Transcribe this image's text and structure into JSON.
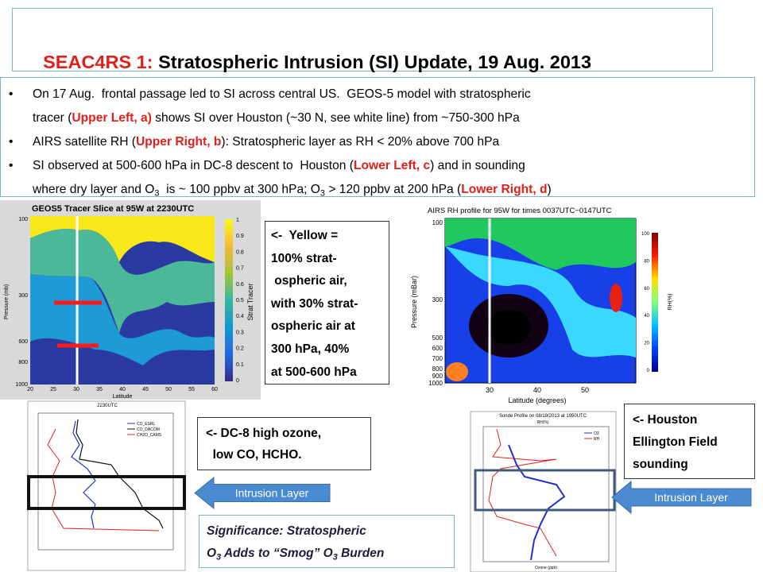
{
  "title": {
    "lead": "SEAC4RS 1:",
    "rest": " Stratospheric Intrusion (SI) Update, 19 Aug. 2013"
  },
  "bullets": [
    [
      [
        {
          "text": "On 17 Aug.  frontal passage led to SI across central US.  GEOS-5 model with stratospheric"
        }
      ],
      [
        {
          "text": "tracer ("
        },
        {
          "text": "Upper Left, a)",
          "style": "red"
        },
        {
          "text": " shows SI over Houston (~30 N, see white line) from ~750-300 hPa"
        }
      ]
    ],
    [
      [
        {
          "text": "AIRS satellite RH ("
        },
        {
          "text": "Upper Right, b",
          "style": "red"
        },
        {
          "text": "): Stratospheric layer as RH < 20% above 700 hPa"
        }
      ]
    ],
    [
      [
        {
          "text": "SI observed at 500-600 hPa in DC-8 descent to  Houston ("
        },
        {
          "text": "Lower Left, c",
          "style": "red"
        },
        {
          "text": ") and in sounding"
        }
      ],
      [
        {
          "text": "where dry layer and O"
        },
        {
          "text": "3",
          "style": "sub"
        },
        {
          "text": "  is ~ 100 ppbv at 300 hPa; O"
        },
        {
          "text": "3",
          "style": "sub"
        },
        {
          "text": " > 120 ppbv at 200 hPa ("
        },
        {
          "text": "Lower Right, d",
          "style": "red"
        },
        {
          "text": ")"
        }
      ]
    ]
  ],
  "yellow_note": [
    "<-  Yellow =",
    "100% strat-",
    " ospheric air,",
    "with 30% strat-",
    "ospheric air at",
    "300 hPa, 40%",
    "at 500-600 hPa"
  ],
  "dc8_note": [
    "<- DC-8 high ozone,",
    "  low CO, HCHO."
  ],
  "houston_note": [
    "<- Houston",
    "Ellington Field",
    "sounding"
  ],
  "significance": [
    [
      {
        "text": "Significance: Stratospheric"
      }
    ],
    [
      {
        "text": "O"
      },
      {
        "text": "3",
        "style": "sub"
      },
      {
        "text": " Adds to “Smog” O"
      },
      {
        "text": "3",
        "style": "sub"
      },
      {
        "text": " Burden"
      }
    ]
  ],
  "arrows": {
    "left": "Intrusion Layer",
    "right": "Intrusion Layer"
  },
  "plots": {
    "upper_left": {
      "title": "GEOS5 Tracer Slice at 95W at 2230UTC",
      "y_label": "Pressure (mb)",
      "x_label": "Latitude",
      "colorbar_label": "Strat Tracer",
      "x_ticks": [
        "20",
        "25",
        "30",
        "35",
        "40",
        "45",
        "50",
        "55",
        "60"
      ],
      "y_ticks": [
        "100",
        "300",
        "600",
        "800",
        "1000"
      ],
      "colorbar_ticks": [
        "1",
        "0.9",
        "0.8",
        "0.7",
        "0.6",
        "0.5",
        "0.4",
        "0.3",
        "0.2",
        "0.1",
        "0"
      ]
    },
    "upper_right": {
      "title": "AIRS RH profile for 95W for times 0037UTC−0147UTC",
      "y_label": "Pressure (mBar)",
      "x_label": "Latitude (degrees)",
      "colorbar_label": "RH(%)",
      "x_ticks": [
        "30",
        "40",
        "50"
      ],
      "y_ticks": [
        "100",
        "300",
        "500",
        "600",
        "700",
        "800",
        "900",
        "1000"
      ],
      "colorbar_ticks": [
        "100",
        "80",
        "60",
        "40",
        "20",
        "0"
      ]
    },
    "lower_left": {
      "title": "2230UTC",
      "legend": [
        "CO_ESRL",
        "CO_DACOM",
        "CH2O_CAMS"
      ]
    },
    "lower_right": {
      "title": "Sonde Profile on 08/19/2013 at 1950UTC",
      "legend": [
        "O3",
        "RH"
      ],
      "x_label": "Ozone (ppb)",
      "top_label": "RH(%)"
    }
  }
}
